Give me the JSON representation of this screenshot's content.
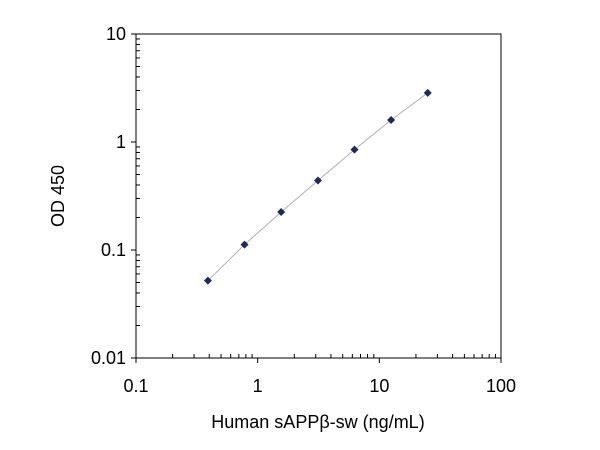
{
  "chart_data": {
    "type": "scatter",
    "title": "",
    "xlabel": "Human sAPPβ-sw (ng/mL)",
    "ylabel": "OD 450",
    "x_scale": "log",
    "y_scale": "log",
    "xlim": [
      0.1,
      100
    ],
    "ylim": [
      0.01,
      10
    ],
    "x_ticks": [
      0.1,
      1,
      10,
      100
    ],
    "x_tick_labels": [
      "0.1",
      "1",
      "10",
      "100"
    ],
    "y_ticks": [
      0.01,
      0.1,
      1,
      10
    ],
    "y_tick_labels": [
      "0.01",
      "0.1",
      "1",
      "10"
    ],
    "grid": false,
    "legend": "none",
    "trendline": true,
    "marker": "diamond",
    "colors": {
      "marker": "#1f2a5c",
      "trendline": "#b0b0b0",
      "frame": "#000000"
    },
    "series": [
      {
        "x": [
          0.39,
          0.78,
          1.56,
          3.13,
          6.25,
          12.5,
          25
        ],
        "y": [
          0.052,
          0.112,
          0.225,
          0.44,
          0.85,
          1.6,
          2.85
        ]
      }
    ]
  }
}
